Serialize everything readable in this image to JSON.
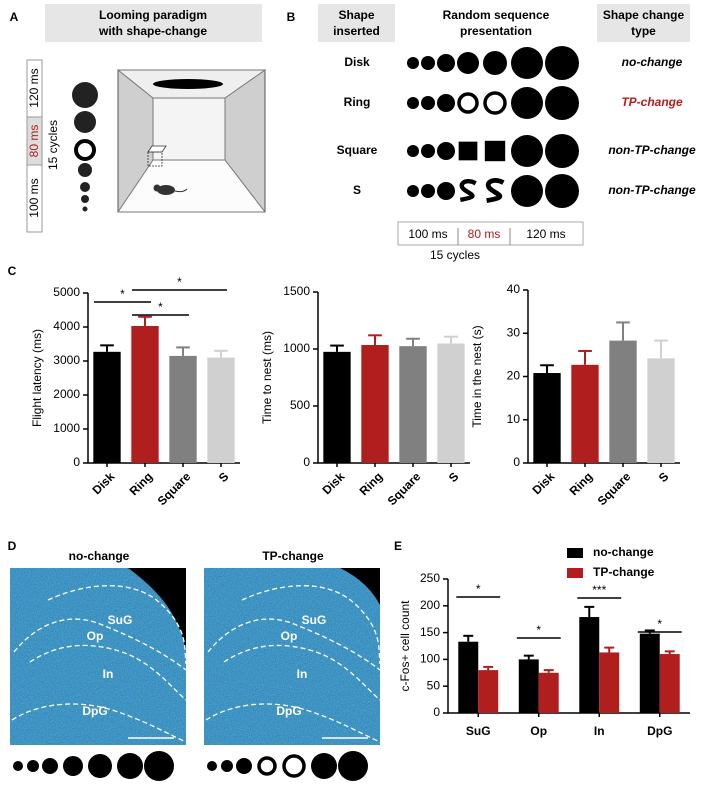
{
  "panel_labels": [
    "A",
    "B",
    "C",
    "D",
    "E"
  ],
  "panel_a": {
    "title_lines": [
      "Looming paradigm",
      "with shape-change"
    ],
    "timing": [
      "120 ms",
      "80 ms",
      "100 ms"
    ],
    "cycles": "15 cycles"
  },
  "panel_b": {
    "headers": [
      [
        "Shape",
        "inserted"
      ],
      [
        "Random sequence",
        "presentation"
      ],
      [
        "Shape change",
        "type"
      ]
    ],
    "rows": [
      {
        "shape": "Disk",
        "type": "no-change",
        "color": "#000000"
      },
      {
        "shape": "Ring",
        "type": "TP-change",
        "color": "#b01e1e"
      },
      {
        "shape": "Square",
        "type": "non-TP-change",
        "color": "#000000"
      },
      {
        "shape": "S",
        "type": "non-TP-change",
        "color": "#000000"
      }
    ],
    "timeline": [
      "100 ms",
      "80 ms",
      "120 ms"
    ],
    "cycles": "15 cycles"
  },
  "chart_data": [
    {
      "type": "bar",
      "ylabel": "Flight latency (ms)",
      "categories": [
        "Disk",
        "Ring",
        "Square",
        "S"
      ],
      "values": [
        3270,
        4030,
        3150,
        3100
      ],
      "errors": [
        190,
        270,
        250,
        200
      ],
      "colors": [
        "#000000",
        "#b01e1e",
        "#808080",
        "#d0d0d0"
      ],
      "ylim": [
        0,
        5000
      ],
      "yticks": [
        0,
        1000,
        2000,
        3000,
        4000,
        5000
      ],
      "significance": [
        {
          "label": "*",
          "from": "Disk",
          "to": "Ring"
        },
        {
          "label": "*",
          "from": "Ring",
          "to": "Square"
        },
        {
          "label": "*",
          "from": "Ring",
          "to": "S"
        }
      ]
    },
    {
      "type": "bar",
      "ylabel": "Time to nest (ms)",
      "categories": [
        "Disk",
        "Ring",
        "Square",
        "S"
      ],
      "values": [
        975,
        1035,
        1025,
        1048
      ],
      "errors": [
        55,
        85,
        65,
        60
      ],
      "colors": [
        "#000000",
        "#b01e1e",
        "#808080",
        "#d0d0d0"
      ],
      "ylim": [
        0,
        1500
      ],
      "yticks": [
        0,
        500,
        1000,
        1500
      ]
    },
    {
      "type": "bar",
      "ylabel": "Time in the nest (s)",
      "categories": [
        "Disk",
        "Ring",
        "Square",
        "S"
      ],
      "values": [
        20.8,
        22.7,
        28.3,
        24.2
      ],
      "errors": [
        1.8,
        3.2,
        4.2,
        4.1
      ],
      "colors": [
        "#000000",
        "#b01e1e",
        "#808080",
        "#d0d0d0"
      ],
      "ylim": [
        0,
        40
      ],
      "yticks": [
        0,
        10,
        20,
        30,
        40
      ]
    },
    {
      "type": "bar",
      "ylabel": "c-Fos+ cell count",
      "categories": [
        "SuG",
        "Op",
        "In",
        "DpG"
      ],
      "series": [
        {
          "name": "no-change",
          "color": "#000000",
          "values": [
            133,
            100,
            179,
            148
          ],
          "errors": [
            11,
            7,
            19,
            6
          ]
        },
        {
          "name": "TP-change",
          "color": "#b01e1e",
          "values": [
            80,
            75,
            113,
            110
          ],
          "errors": [
            6,
            5,
            9,
            5
          ]
        }
      ],
      "ylim": [
        0,
        250
      ],
      "yticks": [
        0,
        50,
        100,
        150,
        200,
        250
      ],
      "significance": [
        {
          "label": "*",
          "category": "SuG"
        },
        {
          "label": "*",
          "category": "Op"
        },
        {
          "label": "***",
          "category": "In"
        },
        {
          "label": "*",
          "category": "DpG"
        }
      ]
    }
  ],
  "panel_d": {
    "images": [
      {
        "title": "no-change",
        "regions": [
          "SuG",
          "Op",
          "In",
          "DpG"
        ]
      },
      {
        "title": "TP-change",
        "regions": [
          "SuG",
          "Op",
          "In",
          "DpG"
        ]
      }
    ]
  }
}
